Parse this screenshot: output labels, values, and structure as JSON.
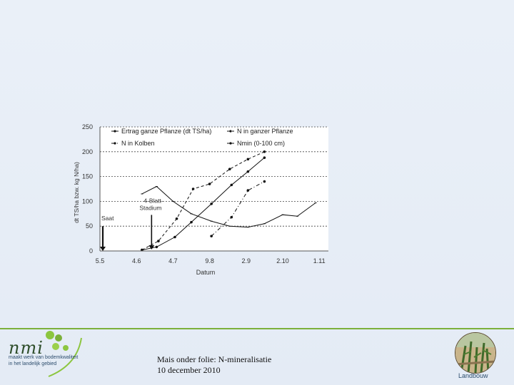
{
  "chart_data": {
    "type": "line",
    "title": "",
    "xlabel": "Datum",
    "ylabel": "dt TS/ha bzw. kg N/ha)",
    "ylim": [
      0,
      250
    ],
    "yticks": [
      0,
      50,
      100,
      150,
      200,
      250
    ],
    "x_categories": [
      "5.5",
      "4.6",
      "4.7",
      "9.8",
      "2.9",
      "2.10",
      "1.11"
    ],
    "xlim": [
      0,
      6.25
    ],
    "grid": "horizontal dashed",
    "legend_position": "top",
    "legend": [
      "Ertrag ganze Pflanze (dt TS/ha)",
      "N in ganzer Pflanze",
      "N in Kolben",
      "Nmin (0-100 cm)"
    ],
    "series": [
      {
        "name": "Ertrag ganze Pflanze (dt TS/ha)",
        "style": "solid-dot",
        "x": [
          1.15,
          1.55,
          2.05,
          2.5,
          3.05,
          3.6,
          4.05,
          4.5
        ],
        "y": [
          2,
          8,
          28,
          58,
          95,
          133,
          160,
          188
        ]
      },
      {
        "name": "N in ganzer Pflanze",
        "style": "dashed",
        "x": [
          1.15,
          1.6,
          2.1,
          2.55,
          3.0,
          3.55,
          4.05,
          4.5
        ],
        "y": [
          2,
          20,
          65,
          125,
          135,
          165,
          185,
          200
        ]
      },
      {
        "name": "N in Kolben",
        "style": "dashed-dot",
        "x": [
          3.05,
          3.6,
          4.05,
          4.5
        ],
        "y": [
          30,
          68,
          122,
          140
        ]
      },
      {
        "name": "Nmin (0-100 cm)",
        "style": "solid",
        "x": [
          1.15,
          1.55,
          2.0,
          2.5,
          3.05,
          3.55,
          4.05,
          4.5,
          5.0,
          5.4,
          5.9
        ],
        "y": [
          115,
          130,
          100,
          75,
          60,
          50,
          48,
          55,
          73,
          70,
          97
        ]
      }
    ],
    "annotations": [
      {
        "text": "Saat",
        "x": 0,
        "y": 50
      },
      {
        "text": "4-Blatt-Stadium",
        "x": 1.1,
        "y": 77
      }
    ]
  },
  "footer": {
    "logo_text": "nmi",
    "tagline": "maakt werk van bodemkwaliteit in het landelijk gebied",
    "title_line1": "Mais onder folie: N-mineralisatie",
    "title_line2": "10 december 2010",
    "section_label": "Landbouw"
  },
  "colors": {
    "accent": "#7bb03a",
    "logo_dot": "#8cc63f",
    "text_blue": "#2c4d6d"
  }
}
